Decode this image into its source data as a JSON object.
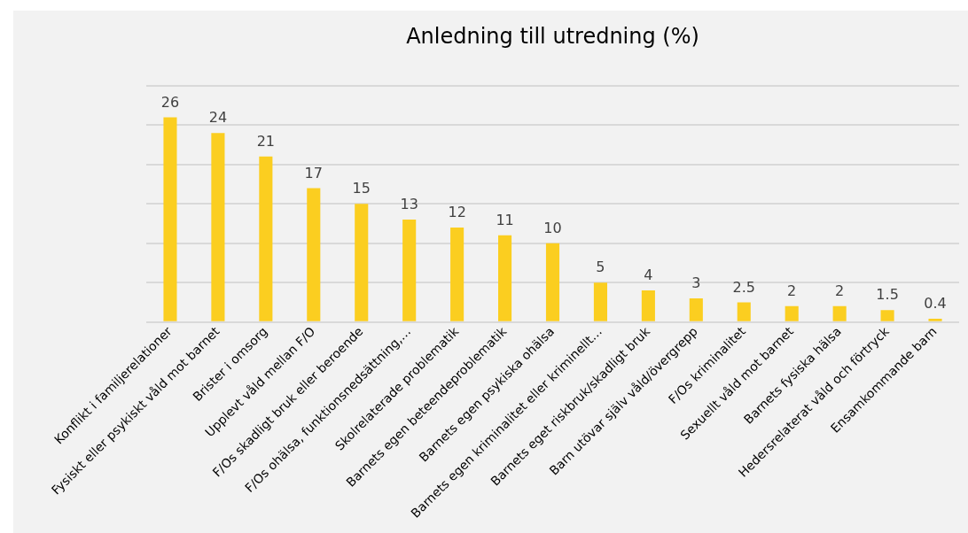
{
  "chart_data": {
    "type": "bar",
    "title": "Anledning till utredning (%)",
    "categories": [
      "Konflikt i familjerelationer",
      "Fysiskt eller psykiskt våld mot barnet",
      "Brister i omsorg",
      "Upplevt våld mellan F/O",
      "F/Os skadligt bruk eller beroende",
      "F/Os ohälsa, funktionsnedsättning,…",
      "Skolrelaterade problematik",
      "Barnets egen beteendeproblematik",
      "Barnets egen psykiska ohälsa",
      "Barnets egen kriminalitet eller kriminellt…",
      "Barnets eget riskbruk/skadligt bruk",
      "Barn utövar själv våld/övergrepp",
      "F/Os kriminalitet",
      "Sexuellt våld mot barnet",
      "Barnets fysiska hälsa",
      "Hedersrelaterat våld och förtryck",
      "Ensamkommande barn"
    ],
    "values": [
      26,
      24,
      21,
      17,
      15,
      13,
      12,
      11,
      10,
      5,
      4,
      3,
      2.5,
      2,
      2,
      1.5,
      0.4
    ],
    "color": "#fbce20",
    "ylim": [
      0,
      30
    ],
    "grid": "y",
    "tick_labels": "x",
    "data_labels": true
  }
}
